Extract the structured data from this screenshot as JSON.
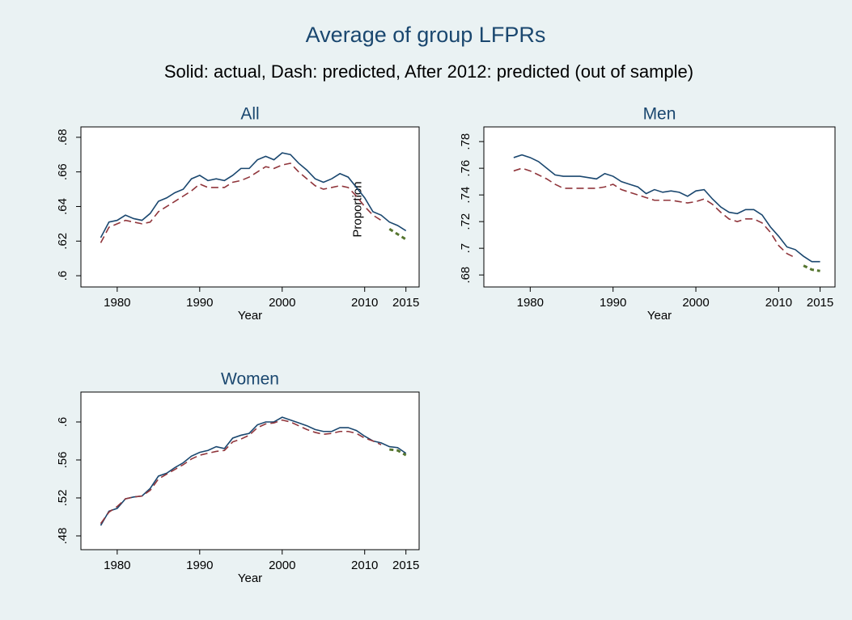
{
  "title": "Average of group LFPRs",
  "subtitle": "Solid: actual, Dash: predicted, After 2012: predicted (out of sample)",
  "chart_data": [
    {
      "type": "line",
      "title": "All",
      "xlabel": "Year",
      "ylabel": "Proportion",
      "x": [
        1978,
        1979,
        1980,
        1981,
        1982,
        1983,
        1984,
        1985,
        1986,
        1987,
        1988,
        1989,
        1990,
        1991,
        1992,
        1993,
        1994,
        1995,
        1996,
        1997,
        1998,
        1999,
        2000,
        2001,
        2002,
        2003,
        2004,
        2005,
        2006,
        2007,
        2008,
        2009,
        2010,
        2011,
        2012,
        2013,
        2014,
        2015
      ],
      "xlim": [
        1975.6,
        2016.6
      ],
      "xticks": [
        1980,
        1990,
        2000,
        2010,
        2015
      ],
      "ylim": [
        0.5935,
        0.686
      ],
      "yticks": [
        {
          "value": 0.6,
          "label": ".6"
        },
        {
          "value": 0.62,
          "label": ".62"
        },
        {
          "value": 0.64,
          "label": ".64"
        },
        {
          "value": 0.66,
          "label": ".66"
        },
        {
          "value": 0.68,
          "label": ".68"
        }
      ],
      "series": [
        {
          "color": "#1a476f",
          "style": "solid",
          "values": [
            0.622,
            0.631,
            0.632,
            0.635,
            0.633,
            0.632,
            0.636,
            0.643,
            0.645,
            0.648,
            0.65,
            0.656,
            0.658,
            0.655,
            0.656,
            0.655,
            0.658,
            0.662,
            0.662,
            0.667,
            0.669,
            0.667,
            0.671,
            0.67,
            0.665,
            0.661,
            0.656,
            0.654,
            0.656,
            0.659,
            0.657,
            0.651,
            0.645,
            0.637,
            0.635,
            0.631,
            0.629,
            0.626
          ]
        },
        {
          "color": "#90353b",
          "style": "dash",
          "values": [
            0.619,
            0.628,
            0.63,
            0.632,
            0.631,
            0.63,
            0.631,
            0.637,
            0.64,
            0.643,
            0.646,
            0.649,
            0.653,
            0.651,
            0.651,
            0.651,
            0.654,
            0.655,
            0.657,
            0.66,
            0.663,
            0.662,
            0.664,
            0.665,
            0.66,
            0.656,
            0.652,
            0.65,
            0.651,
            0.652,
            0.651,
            0.646,
            0.64,
            0.635,
            0.632,
            null,
            null,
            null
          ]
        },
        {
          "color": "#55752f",
          "style": "dot",
          "values": [
            null,
            null,
            null,
            null,
            null,
            null,
            null,
            null,
            null,
            null,
            null,
            null,
            null,
            null,
            null,
            null,
            null,
            null,
            null,
            null,
            null,
            null,
            null,
            null,
            null,
            null,
            null,
            null,
            null,
            null,
            null,
            null,
            null,
            null,
            null,
            0.627,
            0.624,
            0.621
          ]
        }
      ]
    },
    {
      "type": "line",
      "title": "Men",
      "xlabel": "Year",
      "x": [
        1978,
        1979,
        1980,
        1981,
        1982,
        1983,
        1984,
        1985,
        1986,
        1987,
        1988,
        1989,
        1990,
        1991,
        1992,
        1993,
        1994,
        1995,
        1996,
        1997,
        1998,
        1999,
        2000,
        2001,
        2002,
        2003,
        2004,
        2005,
        2006,
        2007,
        2008,
        2009,
        2010,
        2011,
        2012,
        2013,
        2014,
        2015
      ],
      "xlim": [
        1974.4,
        2016.8
      ],
      "xticks": [
        1980,
        1990,
        2000,
        2010,
        2015
      ],
      "ylim": [
        0.671,
        0.791
      ],
      "yticks": [
        {
          "value": 0.68,
          "label": ".68"
        },
        {
          "value": 0.7,
          "label": ".7"
        },
        {
          "value": 0.72,
          "label": ".72"
        },
        {
          "value": 0.74,
          "label": ".74"
        },
        {
          "value": 0.76,
          "label": ".76"
        },
        {
          "value": 0.78,
          "label": ".78"
        }
      ],
      "series": [
        {
          "color": "#1a476f",
          "style": "solid",
          "values": [
            0.768,
            0.77,
            0.768,
            0.765,
            0.76,
            0.755,
            0.754,
            0.754,
            0.754,
            0.753,
            0.752,
            0.756,
            0.754,
            0.75,
            0.748,
            0.746,
            0.741,
            0.744,
            0.742,
            0.743,
            0.742,
            0.739,
            0.743,
            0.744,
            0.737,
            0.731,
            0.727,
            0.726,
            0.729,
            0.729,
            0.725,
            0.716,
            0.709,
            0.701,
            0.699,
            0.694,
            0.69,
            0.69
          ]
        },
        {
          "color": "#90353b",
          "style": "dash",
          "values": [
            0.758,
            0.76,
            0.758,
            0.755,
            0.752,
            0.748,
            0.745,
            0.745,
            0.745,
            0.745,
            0.745,
            0.746,
            0.748,
            0.744,
            0.742,
            0.74,
            0.738,
            0.736,
            0.736,
            0.736,
            0.735,
            0.734,
            0.735,
            0.737,
            0.733,
            0.727,
            0.722,
            0.72,
            0.722,
            0.722,
            0.719,
            0.712,
            0.702,
            0.696,
            0.693,
            null,
            null,
            null
          ]
        },
        {
          "color": "#55752f",
          "style": "dot",
          "values": [
            null,
            null,
            null,
            null,
            null,
            null,
            null,
            null,
            null,
            null,
            null,
            null,
            null,
            null,
            null,
            null,
            null,
            null,
            null,
            null,
            null,
            null,
            null,
            null,
            null,
            null,
            null,
            null,
            null,
            null,
            null,
            null,
            null,
            null,
            null,
            0.687,
            0.684,
            0.683
          ]
        }
      ]
    },
    {
      "type": "line",
      "title": "Women",
      "xlabel": "Year",
      "x": [
        1978,
        1979,
        1980,
        1981,
        1982,
        1983,
        1984,
        1985,
        1986,
        1987,
        1988,
        1989,
        1990,
        1991,
        1992,
        1993,
        1994,
        1995,
        1996,
        1997,
        1998,
        1999,
        2000,
        2001,
        2002,
        2003,
        2004,
        2005,
        2006,
        2007,
        2008,
        2009,
        2010,
        2011,
        2012,
        2013,
        2014,
        2015
      ],
      "xlim": [
        1975.6,
        2016.6
      ],
      "xticks": [
        1980,
        1990,
        2000,
        2010,
        2015
      ],
      "ylim": [
        0.4655,
        0.6315
      ],
      "yticks": [
        {
          "value": 0.48,
          "label": ".48"
        },
        {
          "value": 0.52,
          "label": ".52"
        },
        {
          "value": 0.56,
          "label": ".56"
        },
        {
          "value": 0.6,
          "label": ".6"
        }
      ],
      "series": [
        {
          "color": "#1a476f",
          "style": "solid",
          "values": [
            0.491,
            0.506,
            0.509,
            0.519,
            0.521,
            0.522,
            0.53,
            0.543,
            0.546,
            0.552,
            0.557,
            0.564,
            0.568,
            0.57,
            0.574,
            0.572,
            0.583,
            0.586,
            0.588,
            0.597,
            0.6,
            0.6,
            0.605,
            0.602,
            0.599,
            0.596,
            0.592,
            0.59,
            0.59,
            0.594,
            0.594,
            0.591,
            0.585,
            0.58,
            0.578,
            0.574,
            0.573,
            0.567
          ]
        },
        {
          "color": "#90353b",
          "style": "dash",
          "values": [
            0.493,
            0.505,
            0.511,
            0.519,
            0.521,
            0.522,
            0.528,
            0.54,
            0.545,
            0.55,
            0.555,
            0.561,
            0.565,
            0.567,
            0.569,
            0.57,
            0.579,
            0.582,
            0.586,
            0.594,
            0.598,
            0.599,
            0.602,
            0.6,
            0.596,
            0.592,
            0.589,
            0.587,
            0.588,
            0.59,
            0.59,
            0.588,
            0.583,
            0.58,
            0.576,
            null,
            null,
            null
          ]
        },
        {
          "color": "#55752f",
          "style": "dot",
          "values": [
            null,
            null,
            null,
            null,
            null,
            null,
            null,
            null,
            null,
            null,
            null,
            null,
            null,
            null,
            null,
            null,
            null,
            null,
            null,
            null,
            null,
            null,
            null,
            null,
            null,
            null,
            null,
            null,
            null,
            null,
            null,
            null,
            null,
            null,
            null,
            0.571,
            0.57,
            0.565
          ]
        }
      ]
    }
  ]
}
